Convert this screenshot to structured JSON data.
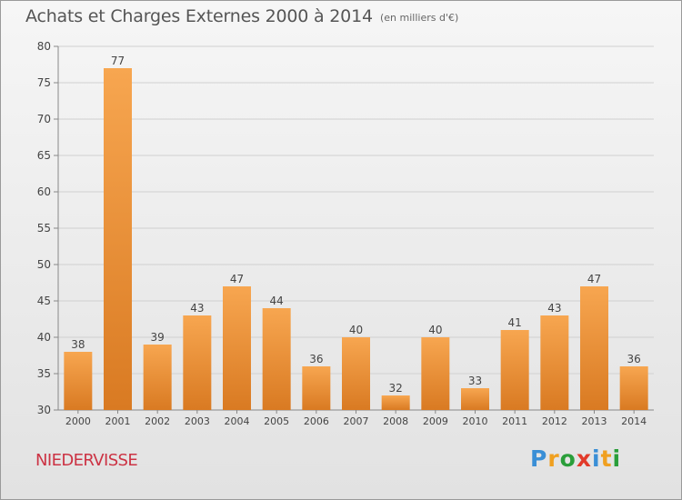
{
  "header": {
    "title": "Achats et Charges Externes 2000 à 2014",
    "subtitle": "(en milliers d'€)"
  },
  "footer": {
    "place": "NIEDERVISSE",
    "logo_text": "Proxiti",
    "logo_letters": [
      {
        "ch": "P",
        "color": "#3a8fd6"
      },
      {
        "ch": "r",
        "color": "#f0a020"
      },
      {
        "ch": "o",
        "color": "#2a9e3a"
      },
      {
        "ch": "x",
        "color": "#e23a2a"
      },
      {
        "ch": "i",
        "color": "#3a8fd6"
      },
      {
        "ch": "t",
        "color": "#f0a020"
      },
      {
        "ch": "i",
        "color": "#2a9e3a"
      }
    ]
  },
  "colors": {
    "bar_light": "#f7a650",
    "bar_dark": "#d97a22",
    "axis": "#888888",
    "grid": "#d0d0d0",
    "text": "#444444"
  },
  "chart_data": {
    "type": "bar",
    "title": "Achats et Charges Externes 2000 à 2014",
    "subtitle": "(en milliers d'€)",
    "categories": [
      "2000",
      "2001",
      "2002",
      "2003",
      "2004",
      "2005",
      "2006",
      "2007",
      "2008",
      "2009",
      "2010",
      "2011",
      "2012",
      "2013",
      "2014"
    ],
    "values": [
      38,
      77,
      39,
      43,
      47,
      44,
      36,
      40,
      32,
      40,
      33,
      41,
      43,
      47,
      36
    ],
    "ylim": [
      30,
      80
    ],
    "yticks": [
      30,
      35,
      40,
      45,
      50,
      55,
      60,
      65,
      70,
      75,
      80
    ],
    "xlabel": "",
    "ylabel": "",
    "grid": true,
    "data_labels": true
  }
}
